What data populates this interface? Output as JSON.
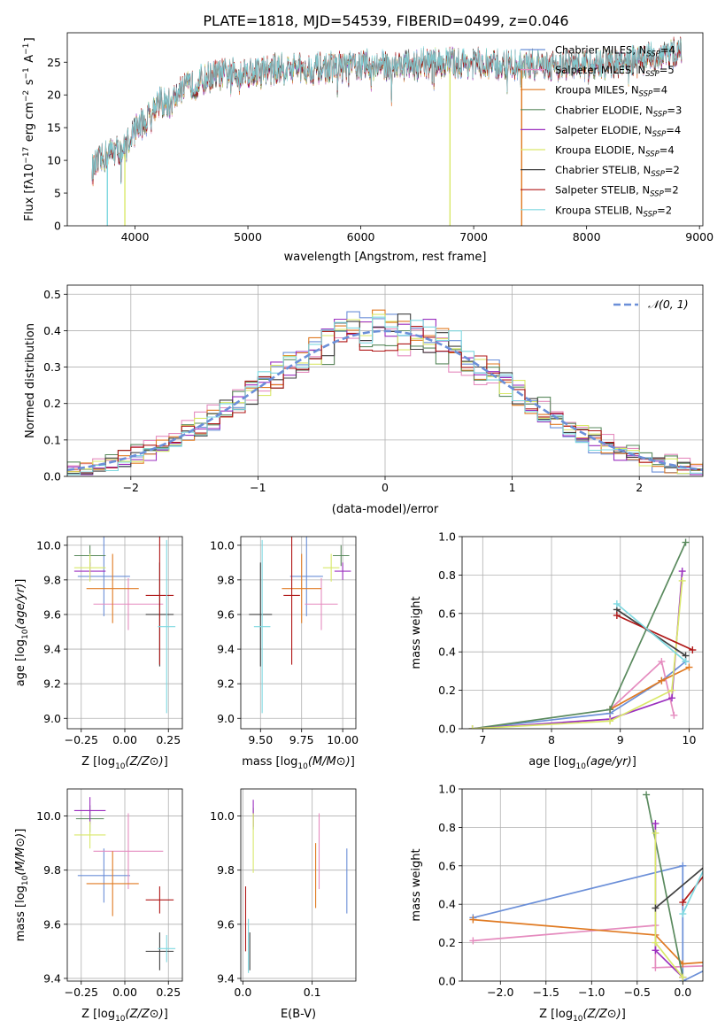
{
  "title": "PLATE=1818, MJD=54539, FIBERID=0499, z=0.046",
  "colors": {
    "Chabrier MILES": "#6b8fd8",
    "Salpeter MILES": "#e58cbf",
    "Kroupa MILES": "#e07a22",
    "Chabrier ELODIE": "#5a8a5e",
    "Salpeter ELODIE": "#9b2fbf",
    "Kroupa ELODIE": "#d9e86a",
    "Chabrier STELIB": "#404040",
    "Salpeter STELIB": "#b01818",
    "Kroupa STELIB": "#7ed8e0",
    "normal": "#6b8fd8",
    "grid": "#b0b0b0"
  },
  "chart_data": [
    {
      "id": "spectrum",
      "type": "line",
      "xlabel": "wavelength [Angstrom, rest frame]",
      "ylabel": "Flux [f_λ10^-17 erg cm^-2 s^-1 A^-1]",
      "xlim": [
        3400,
        9030
      ],
      "ylim": [
        0,
        29.5
      ],
      "xticks": [
        4000,
        5000,
        6000,
        7000,
        8000,
        9000
      ],
      "yticks": [
        0,
        5,
        10,
        15,
        20,
        25
      ],
      "grid": false,
      "legend_position": "top-right",
      "legend": [
        {
          "label": "Chabrier MILES, N",
          "sub": "SSP",
          "eq": "=4"
        },
        {
          "label": "Salpeter MILES, N",
          "sub": "SSP",
          "eq": "=5"
        },
        {
          "label": "Kroupa MILES, N",
          "sub": "SSP",
          "eq": "=4"
        },
        {
          "label": "Chabrier ELODIE, N",
          "sub": "SSP",
          "eq": "=3"
        },
        {
          "label": "Salpeter ELODIE, N",
          "sub": "SSP",
          "eq": "=4"
        },
        {
          "label": "Kroupa ELODIE, N",
          "sub": "SSP",
          "eq": "=4"
        },
        {
          "label": "Chabrier STELIB, N",
          "sub": "SSP",
          "eq": "=2"
        },
        {
          "label": "Salpeter STELIB, N",
          "sub": "SSP",
          "eq": "=2"
        },
        {
          "label": "Kroupa STELIB, N",
          "sub": "SSP",
          "eq": "=2"
        }
      ],
      "continuum": {
        "x": [
          3620,
          3700,
          3800,
          3900,
          4000,
          4100,
          4200,
          4300,
          4400,
          4500,
          4700,
          5000,
          5300,
          5600,
          6000,
          6400,
          6800,
          7200,
          7600,
          8000,
          8400,
          8800
        ],
        "y": [
          8.5,
          10.0,
          11.5,
          11.5,
          15.0,
          16.0,
          19.0,
          18.5,
          20.5,
          21.5,
          23.0,
          23.5,
          24.0,
          24.0,
          24.5,
          24.5,
          25.0,
          24.5,
          24.5,
          24.5,
          25.0,
          26.5
        ]
      },
      "spikes": [
        {
          "series": "Kroupa STELIB",
          "x": 3755,
          "y": [
            0,
            10
          ]
        },
        {
          "series": "Kroupa ELODIE",
          "x": 3910,
          "y": [
            0,
            11
          ]
        },
        {
          "series": "Kroupa ELODIE",
          "x": 6790,
          "y": [
            0,
            24
          ]
        },
        {
          "series": "Kroupa MILES",
          "x": 7425,
          "y": [
            0,
            24
          ]
        }
      ]
    },
    {
      "id": "residuals",
      "type": "histogram",
      "xlabel": "(data-model)/error",
      "ylabel": "Normed distribution",
      "xlim": [
        -2.5,
        2.5
      ],
      "ylim": [
        0,
        0.525
      ],
      "xticks": [
        -2,
        -1,
        0,
        1,
        2
      ],
      "yticks": [
        0.0,
        0.1,
        0.2,
        0.3,
        0.4,
        0.5
      ],
      "grid": true,
      "legend_position": "top-right",
      "legend": [
        {
          "label": "𝒩(0, 1)",
          "series": "normal"
        }
      ],
      "bin_width": 0.1,
      "sigma_scale": [
        0.92,
        1.08,
        0.96,
        1.05,
        0.93,
        1.0,
        0.98,
        1.02,
        0.95
      ],
      "noise": 0.04
    },
    {
      "id": "age-vs-z",
      "type": "errorbar",
      "xlabel": "Z [log10(Z/Z⊙)]",
      "ylabel": "age  [log10(age/yr)]",
      "xlim": [
        -0.33,
        0.33
      ],
      "ylim": [
        8.94,
        10.05
      ],
      "xticks": [
        -0.25,
        0.0,
        0.25
      ],
      "yticks": [
        9.0,
        9.2,
        9.4,
        9.6,
        9.8,
        10.0
      ],
      "grid": true,
      "points": [
        {
          "series": "Chabrier MILES",
          "x": -0.12,
          "xerr": 0.15,
          "y": 9.82,
          "yerr": 0.23
        },
        {
          "series": "Salpeter MILES",
          "x": 0.02,
          "xerr": 0.2,
          "y": 9.66,
          "yerr": 0.15
        },
        {
          "series": "Kroupa MILES",
          "x": -0.07,
          "xerr": 0.15,
          "y": 9.75,
          "yerr": 0.2
        },
        {
          "series": "Chabrier ELODIE",
          "x": -0.2,
          "xerr": 0.09,
          "y": 9.94,
          "yerr": 0.06
        },
        {
          "series": "Salpeter ELODIE",
          "x": -0.2,
          "xerr": 0.09,
          "y": 9.85,
          "yerr": 0.05
        },
        {
          "series": "Kroupa ELODIE",
          "x": -0.2,
          "xerr": 0.09,
          "y": 9.87,
          "yerr": 0.08
        },
        {
          "series": "Chabrier STELIB",
          "x": 0.2,
          "xerr": 0.08,
          "y": 9.6,
          "yerr": 0.3
        },
        {
          "series": "Salpeter STELIB",
          "x": 0.2,
          "xerr": 0.08,
          "y": 9.71,
          "yerr": 0.4
        },
        {
          "series": "Kroupa STELIB",
          "x": 0.24,
          "xerr": 0.05,
          "y": 9.53,
          "yerr": 0.5
        }
      ]
    },
    {
      "id": "age-vs-mass",
      "type": "errorbar",
      "xlabel": "mass [log10(M/M⊙)]",
      "ylabel": "",
      "xlim": [
        9.38,
        10.08
      ],
      "ylim": [
        8.94,
        10.05
      ],
      "xticks": [
        9.5,
        9.75,
        10.0
      ],
      "yticks": [
        9.0,
        9.2,
        9.4,
        9.6,
        9.8,
        10.0
      ],
      "grid": true,
      "points": [
        {
          "series": "Chabrier MILES",
          "x": 9.78,
          "xerr": 0.1,
          "y": 9.82,
          "yerr": 0.23
        },
        {
          "series": "Salpeter MILES",
          "x": 9.87,
          "xerr": 0.1,
          "y": 9.66,
          "yerr": 0.15
        },
        {
          "series": "Kroupa MILES",
          "x": 9.75,
          "xerr": 0.12,
          "y": 9.75,
          "yerr": 0.2
        },
        {
          "series": "Chabrier ELODIE",
          "x": 9.99,
          "xerr": 0.05,
          "y": 9.94,
          "yerr": 0.06
        },
        {
          "series": "Salpeter ELODIE",
          "x": 10.0,
          "xerr": 0.05,
          "y": 9.85,
          "yerr": 0.05
        },
        {
          "series": "Kroupa ELODIE",
          "x": 9.93,
          "xerr": 0.05,
          "y": 9.87,
          "yerr": 0.08
        },
        {
          "series": "Chabrier STELIB",
          "x": 9.5,
          "xerr": 0.07,
          "y": 9.6,
          "yerr": 0.3
        },
        {
          "series": "Salpeter STELIB",
          "x": 9.69,
          "xerr": 0.05,
          "y": 9.71,
          "yerr": 0.4
        },
        {
          "series": "Kroupa STELIB",
          "x": 9.51,
          "xerr": 0.05,
          "y": 9.53,
          "yerr": 0.5
        }
      ]
    },
    {
      "id": "weight-vs-age",
      "type": "line",
      "xlabel": "age  [log10(age/yr)]",
      "ylabel": "mass weight",
      "xlim": [
        6.7,
        10.2
      ],
      "ylim": [
        0,
        1.0
      ],
      "xticks": [
        7,
        8,
        9,
        10
      ],
      "yticks": [
        0.0,
        0.2,
        0.4,
        0.6,
        0.8,
        1.0
      ],
      "grid": true,
      "series": [
        {
          "name": "Chabrier MILES",
          "x": [
            6.85,
            8.85,
            9.6,
            9.95
          ],
          "y": [
            0.0,
            0.08,
            0.25,
            0.35
          ]
        },
        {
          "name": "Salpeter MILES",
          "x": [
            8.85,
            9.6,
            9.78
          ],
          "y": [
            0.1,
            0.35,
            0.07
          ]
        },
        {
          "name": "Kroupa MILES",
          "x": [
            8.85,
            9.6,
            10.0
          ],
          "y": [
            0.1,
            0.25,
            0.32
          ]
        },
        {
          "name": "Chabrier ELODIE",
          "x": [
            6.85,
            8.85,
            9.95
          ],
          "y": [
            0.0,
            0.1,
            0.97
          ]
        },
        {
          "name": "Salpeter ELODIE",
          "x": [
            6.85,
            8.85,
            9.75,
            9.9
          ],
          "y": [
            0.0,
            0.05,
            0.16,
            0.82
          ]
        },
        {
          "name": "Kroupa ELODIE",
          "x": [
            6.85,
            8.85,
            9.75,
            9.9
          ],
          "y": [
            0.0,
            0.04,
            0.2,
            0.77
          ]
        },
        {
          "name": "Chabrier STELIB",
          "x": [
            8.95,
            9.95
          ],
          "y": [
            0.62,
            0.38
          ]
        },
        {
          "name": "Salpeter STELIB",
          "x": [
            8.95,
            10.05
          ],
          "y": [
            0.59,
            0.41
          ]
        },
        {
          "name": "Kroupa STELIB",
          "x": [
            8.95,
            9.95
          ],
          "y": [
            0.65,
            0.35
          ]
        }
      ]
    },
    {
      "id": "mass-vs-z",
      "type": "errorbar",
      "xlabel": "Z [log10(Z/Z⊙)]",
      "ylabel": "mass [log10(M/M⊙)]",
      "xlim": [
        -0.33,
        0.33
      ],
      "ylim": [
        9.39,
        10.1
      ],
      "xticks": [
        -0.25,
        0.0,
        0.25
      ],
      "yticks": [
        9.4,
        9.6,
        9.8,
        10.0
      ],
      "grid": true,
      "points": [
        {
          "series": "Chabrier MILES",
          "x": -0.12,
          "xerr": 0.15,
          "y": 9.78,
          "yerr": 0.1
        },
        {
          "series": "Salpeter MILES",
          "x": 0.02,
          "xerr": 0.2,
          "y": 9.87,
          "yerr": 0.14
        },
        {
          "series": "Kroupa MILES",
          "x": -0.07,
          "xerr": 0.15,
          "y": 9.75,
          "yerr": 0.12
        },
        {
          "series": "Chabrier ELODIE",
          "x": -0.2,
          "xerr": 0.08,
          "y": 9.99,
          "yerr": 0.05
        },
        {
          "series": "Salpeter ELODIE",
          "x": -0.2,
          "xerr": 0.09,
          "y": 10.02,
          "yerr": 0.05
        },
        {
          "series": "Kroupa ELODIE",
          "x": -0.2,
          "xerr": 0.09,
          "y": 9.93,
          "yerr": 0.05
        },
        {
          "series": "Chabrier STELIB",
          "x": 0.2,
          "xerr": 0.08,
          "y": 9.5,
          "yerr": 0.07
        },
        {
          "series": "Salpeter STELIB",
          "x": 0.2,
          "xerr": 0.08,
          "y": 9.69,
          "yerr": 0.05
        },
        {
          "series": "Kroupa STELIB",
          "x": 0.24,
          "xerr": 0.05,
          "y": 9.51,
          "yerr": 0.05
        }
      ]
    },
    {
      "id": "mass-vs-ebv",
      "type": "errorbar",
      "xlabel": "E(B-V)",
      "ylabel": "",
      "xlim": [
        -0.003,
        0.163
      ],
      "ylim": [
        9.39,
        10.1
      ],
      "xticks": [
        0.0,
        0.1
      ],
      "yticks": [
        9.4,
        9.6,
        9.8,
        10.0
      ],
      "grid": true,
      "points": [
        {
          "series": "Chabrier MILES",
          "x": 0.15,
          "xerr": 0.0,
          "y": 9.76,
          "yerr": 0.12
        },
        {
          "series": "Salpeter MILES",
          "x": 0.11,
          "xerr": 0.0,
          "y": 9.87,
          "yerr": 0.14
        },
        {
          "series": "Kroupa MILES",
          "x": 0.105,
          "xerr": 0.0,
          "y": 9.78,
          "yerr": 0.12
        },
        {
          "series": "Chabrier ELODIE",
          "x": 0.015,
          "xerr": 0.0,
          "y": 9.99,
          "yerr": 0.04
        },
        {
          "series": "Salpeter ELODIE",
          "x": 0.015,
          "xerr": 0.0,
          "y": 10.01,
          "yerr": 0.05
        },
        {
          "series": "Kroupa ELODIE",
          "x": 0.015,
          "xerr": 0.0,
          "y": 9.9,
          "yerr": 0.11
        },
        {
          "series": "Chabrier STELIB",
          "x": 0.01,
          "xerr": 0.0,
          "y": 9.5,
          "yerr": 0.07
        },
        {
          "series": "Salpeter STELIB",
          "x": 0.004,
          "xerr": 0.0,
          "y": 9.62,
          "yerr": 0.12
        },
        {
          "series": "Kroupa STELIB",
          "x": 0.008,
          "xerr": 0.0,
          "y": 9.52,
          "yerr": 0.1
        }
      ]
    },
    {
      "id": "weight-vs-z",
      "type": "line",
      "xlabel": "Z [log10(Z/Z⊙)]",
      "ylabel": "mass weight",
      "xlim": [
        -2.42,
        0.22
      ],
      "ylim": [
        0,
        1.0
      ],
      "xticks": [
        -2.0,
        -1.5,
        -1.0,
        -0.5,
        0.0
      ],
      "yticks": [
        0.0,
        0.2,
        0.4,
        0.6,
        0.8,
        1.0
      ],
      "grid": true,
      "series": [
        {
          "name": "Chabrier MILES",
          "x": [
            -2.3,
            0.0,
            0.0,
            0.0,
            0.3,
            0.3
          ],
          "y": [
            0.33,
            0.6,
            0.0,
            0.0,
            0.07,
            0.08
          ]
        },
        {
          "name": "Salpeter MILES",
          "x": [
            -2.3,
            -0.3,
            -0.3,
            0.3
          ],
          "y": [
            0.21,
            0.29,
            0.07,
            0.08
          ]
        },
        {
          "name": "Kroupa MILES",
          "x": [
            -2.3,
            -0.3,
            0.0,
            0.3,
            0.3
          ],
          "y": [
            0.32,
            0.24,
            0.09,
            0.1,
            0.35
          ]
        },
        {
          "name": "Chabrier ELODIE",
          "x": [
            -0.4,
            0.0
          ],
          "y": [
            0.97,
            0.02
          ]
        },
        {
          "name": "Salpeter ELODIE",
          "x": [
            -0.3,
            -0.3,
            0.0
          ],
          "y": [
            0.82,
            0.16,
            0.02
          ]
        },
        {
          "name": "Kroupa ELODIE",
          "x": [
            -0.3,
            -0.3,
            0.0
          ],
          "y": [
            0.77,
            0.2,
            0.02
          ]
        },
        {
          "name": "Chabrier STELIB",
          "x": [
            -0.3,
            0.3
          ],
          "y": [
            0.38,
            0.62
          ]
        },
        {
          "name": "Salpeter STELIB",
          "x": [
            0.0,
            0.3
          ],
          "y": [
            0.41,
            0.59
          ]
        },
        {
          "name": "Kroupa STELIB",
          "x": [
            0.0,
            0.3
          ],
          "y": [
            0.35,
            0.65
          ]
        }
      ]
    }
  ]
}
